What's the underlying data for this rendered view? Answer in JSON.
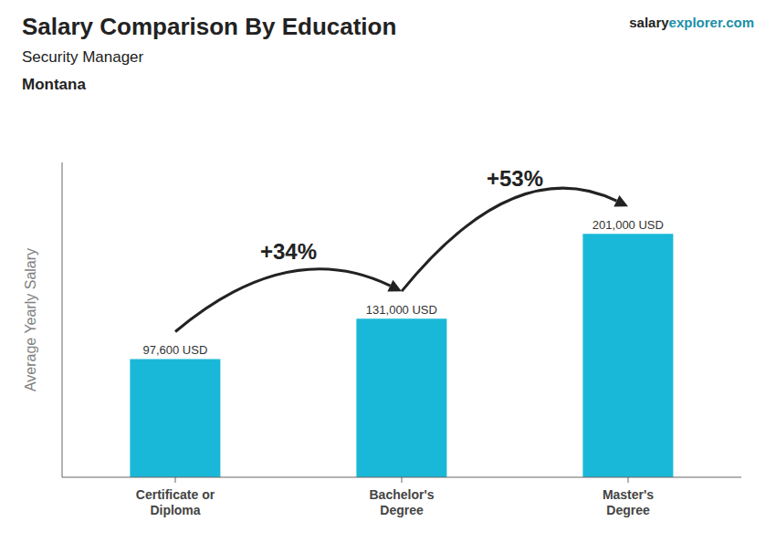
{
  "chart_data": {
    "type": "bar",
    "title": "Salary Comparison By Education",
    "subtitle": [
      "Security Manager",
      "Montana"
    ],
    "source": [
      "salary",
      "explorer.com"
    ],
    "y_label": "Average Yearly Salary",
    "categories": [
      "Certificate or\nDiploma",
      "Bachelor's\nDegree",
      "Master's\nDegree"
    ],
    "values": [
      97600,
      131000,
      201000
    ],
    "value_labels": [
      "97,600 USD",
      "131,000 USD",
      "201,000 USD"
    ],
    "data_labels": true,
    "color": "#1ab8d8",
    "ylim": [
      0,
      260000
    ],
    "tick_labels": "x",
    "grid": false,
    "annotations": [
      {
        "from": "Certificate or\nDiploma",
        "to": "Bachelor's\nDegree",
        "text": "+34%"
      },
      {
        "from": "Bachelor's\nDegree",
        "to": "Master's\nDegree",
        "text": "+53%"
      }
    ]
  }
}
